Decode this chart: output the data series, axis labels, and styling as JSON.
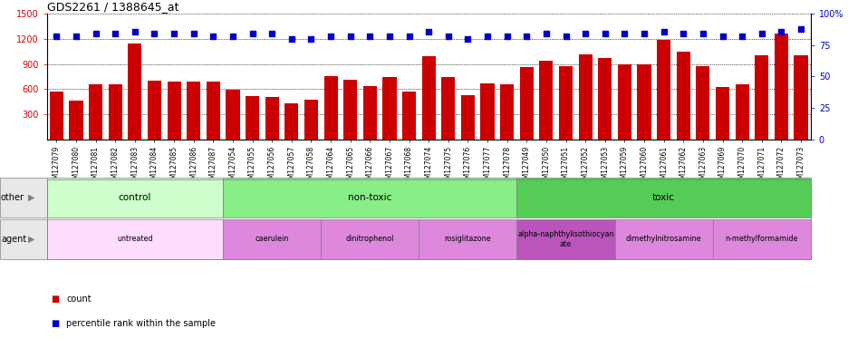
{
  "title": "GDS2261 / 1388645_at",
  "categories": [
    "GSM127079",
    "GSM127080",
    "GSM127081",
    "GSM127082",
    "GSM127083",
    "GSM127084",
    "GSM127085",
    "GSM127086",
    "GSM127087",
    "GSM127054",
    "GSM127055",
    "GSM127056",
    "GSM127057",
    "GSM127058",
    "GSM127064",
    "GSM127065",
    "GSM127066",
    "GSM127067",
    "GSM127068",
    "GSM127074",
    "GSM127075",
    "GSM127076",
    "GSM127077",
    "GSM127078",
    "GSM127049",
    "GSM127050",
    "GSM127051",
    "GSM127052",
    "GSM127053",
    "GSM127059",
    "GSM127060",
    "GSM127061",
    "GSM127062",
    "GSM127063",
    "GSM127069",
    "GSM127070",
    "GSM127071",
    "GSM127072",
    "GSM127073"
  ],
  "bar_values": [
    575,
    460,
    660,
    660,
    1150,
    700,
    690,
    690,
    690,
    590,
    520,
    510,
    430,
    475,
    750,
    710,
    640,
    740,
    570,
    990,
    740,
    530,
    670,
    660,
    860,
    940,
    870,
    1020,
    970,
    900,
    900,
    1190,
    1050,
    870,
    620,
    660,
    1000,
    1260,
    1000
  ],
  "percentile_values": [
    82,
    82,
    84,
    84,
    86,
    84,
    84,
    84,
    82,
    82,
    84,
    84,
    80,
    80,
    82,
    82,
    82,
    82,
    82,
    86,
    82,
    80,
    82,
    82,
    82,
    84,
    82,
    84,
    84,
    84,
    84,
    86,
    84,
    84,
    82,
    82,
    84,
    86,
    88
  ],
  "bar_color": "#cc0000",
  "percentile_color": "#0000cc",
  "ylim_left": [
    0,
    1500
  ],
  "ylim_right": [
    0,
    100
  ],
  "yticks_left": [
    300,
    600,
    900,
    1200,
    1500
  ],
  "yticks_right": [
    0,
    25,
    50,
    75,
    100
  ],
  "group_other": [
    {
      "label": "control",
      "start": 0,
      "end": 9,
      "color": "#ccffcc"
    },
    {
      "label": "non-toxic",
      "start": 9,
      "end": 24,
      "color": "#88ee88"
    },
    {
      "label": "toxic",
      "start": 24,
      "end": 39,
      "color": "#55cc55"
    }
  ],
  "group_agent": [
    {
      "label": "untreated",
      "start": 0,
      "end": 9,
      "color": "#ffddff"
    },
    {
      "label": "caerulein",
      "start": 9,
      "end": 14,
      "color": "#dd88dd"
    },
    {
      "label": "dinitrophenol",
      "start": 14,
      "end": 19,
      "color": "#dd88dd"
    },
    {
      "label": "rosiglitazone",
      "start": 19,
      "end": 24,
      "color": "#dd88dd"
    },
    {
      "label": "alpha-naphthylisothiocyan\nate",
      "start": 24,
      "end": 29,
      "color": "#bb55bb"
    },
    {
      "label": "dimethylnitrosamine",
      "start": 29,
      "end": 34,
      "color": "#dd88dd"
    },
    {
      "label": "n-methylformamide",
      "start": 34,
      "end": 39,
      "color": "#dd88dd"
    }
  ],
  "other_label": "other",
  "agent_label": "agent",
  "legend_count_label": "count",
  "legend_pct_label": "percentile rank within the sample"
}
